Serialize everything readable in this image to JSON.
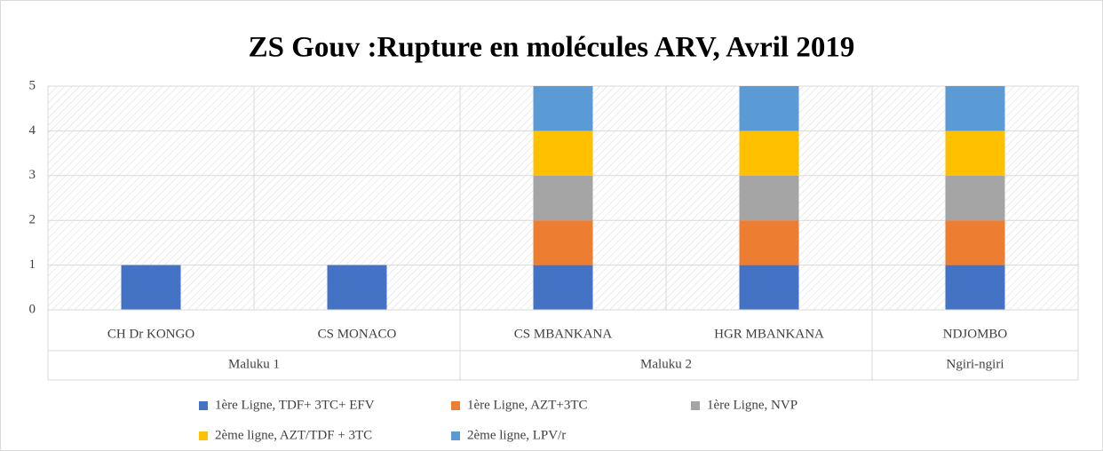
{
  "chart_data": {
    "type": "bar",
    "stacked": true,
    "title": "ZS Gouv :Rupture en molécules ARV, Avril 2019",
    "categories": [
      "CH Dr KONGO",
      "CS MONACO",
      "CS MBANKANA",
      "HGR MBANKANA",
      "NDJOMBO"
    ],
    "category_groups": [
      "Maluku 1",
      "Maluku 1",
      "Maluku 2",
      "Maluku 2",
      "Ngiri-ngiri"
    ],
    "series": [
      {
        "name": "1ère Ligne, TDF+ 3TC+ EFV",
        "color": "#4472c4",
        "values": [
          1,
          1,
          1,
          1,
          1
        ]
      },
      {
        "name": "1ère Ligne, AZT+3TC",
        "color": "#ed7d31",
        "values": [
          0,
          0,
          1,
          1,
          1
        ]
      },
      {
        "name": "1ère Ligne, NVP",
        "color": "#a5a5a5",
        "values": [
          0,
          0,
          1,
          1,
          1
        ]
      },
      {
        "name": "2ème ligne, AZT/TDF + 3TC",
        "color": "#ffc000",
        "values": [
          0,
          0,
          1,
          1,
          1
        ]
      },
      {
        "name": "2ème ligne, LPV/r",
        "color": "#5b9bd5",
        "values": [
          0,
          0,
          1,
          1,
          1
        ]
      }
    ],
    "ylim": [
      0,
      5
    ],
    "yticks": [
      0,
      1,
      2,
      3,
      4,
      5
    ],
    "grid": true,
    "legend": "bottom"
  }
}
